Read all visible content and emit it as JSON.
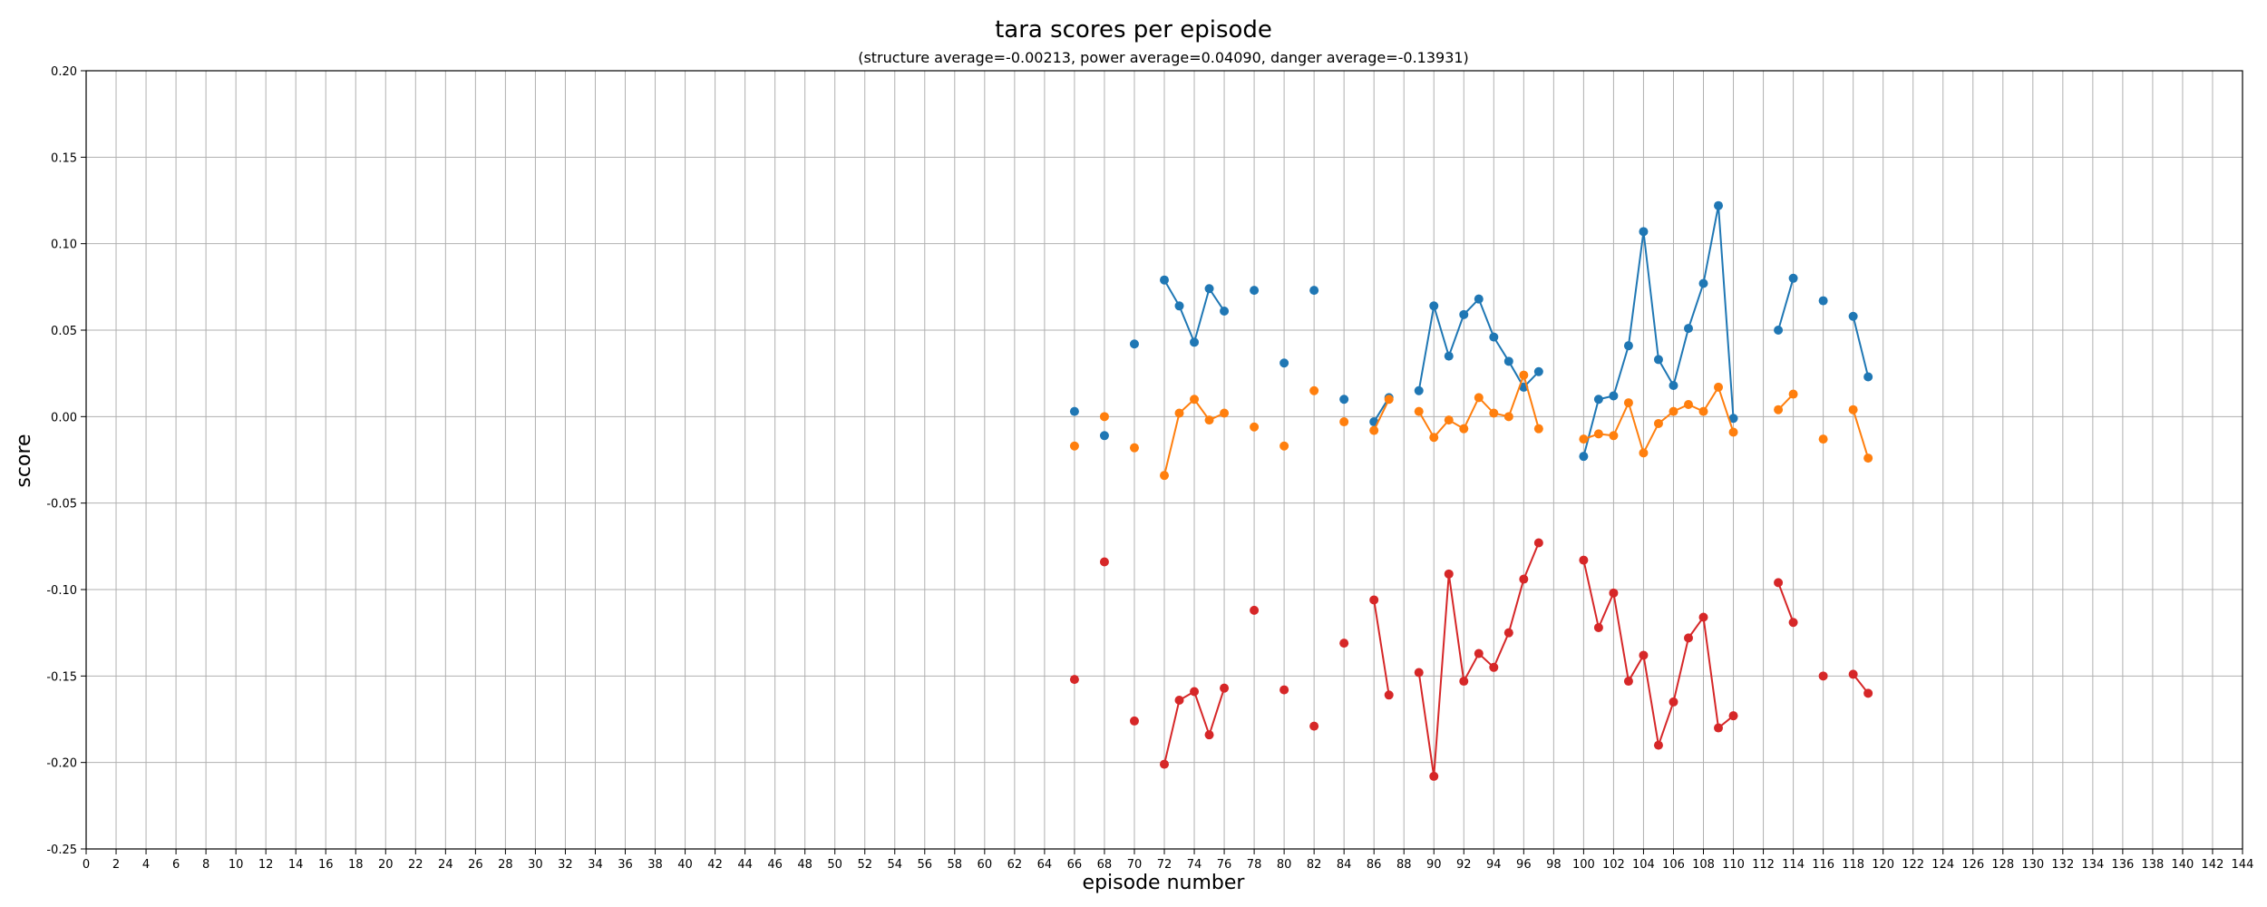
{
  "chart_data": {
    "type": "line",
    "title": "tara scores per episode",
    "subtitle": "(structure average=-0.00213, power average=0.04090, danger average=-0.13931)",
    "xlabel": "episode number",
    "ylabel": "score",
    "xlim": [
      0,
      144
    ],
    "ylim": [
      -0.25,
      0.2
    ],
    "xticks": [
      0,
      2,
      4,
      6,
      8,
      10,
      12,
      14,
      16,
      18,
      20,
      22,
      24,
      26,
      28,
      30,
      32,
      34,
      36,
      38,
      40,
      42,
      44,
      46,
      48,
      50,
      52,
      54,
      56,
      58,
      60,
      62,
      64,
      66,
      68,
      70,
      72,
      74,
      76,
      78,
      80,
      82,
      84,
      86,
      88,
      90,
      92,
      94,
      96,
      98,
      100,
      102,
      104,
      106,
      108,
      110,
      112,
      114,
      116,
      118,
      120,
      122,
      124,
      126,
      128,
      130,
      132,
      134,
      136,
      138,
      140,
      142,
      144
    ],
    "yticks": [
      -0.25,
      -0.2,
      -0.15,
      -0.1,
      -0.05,
      0.0,
      0.05,
      0.1,
      0.15,
      0.2
    ],
    "ytick_labels": [
      "-0.25",
      "-0.20",
      "-0.15",
      "-0.10",
      "-0.05",
      "0.00",
      "0.05",
      "0.10",
      "0.15",
      "0.20"
    ],
    "grid": true,
    "series": [
      {
        "color": "#1f77b4",
        "points": [
          [
            66,
            0.003
          ],
          [
            68,
            -0.011
          ],
          [
            70,
            0.042
          ],
          [
            72,
            0.079
          ],
          [
            73,
            0.064
          ],
          [
            74,
            0.043
          ],
          [
            75,
            0.074
          ],
          [
            76,
            0.061
          ],
          [
            78,
            0.073
          ],
          [
            80,
            0.031
          ],
          [
            82,
            0.073
          ],
          [
            84,
            0.01
          ],
          [
            86,
            -0.003
          ],
          [
            87,
            0.011
          ],
          [
            89,
            0.015
          ],
          [
            90,
            0.064
          ],
          [
            91,
            0.035
          ],
          [
            92,
            0.059
          ],
          [
            93,
            0.068
          ],
          [
            94,
            0.046
          ],
          [
            95,
            0.032
          ],
          [
            96,
            0.017
          ],
          [
            97,
            0.026
          ],
          [
            100,
            -0.023
          ],
          [
            101,
            0.01
          ],
          [
            102,
            0.012
          ],
          [
            103,
            0.041
          ],
          [
            104,
            0.107
          ],
          [
            105,
            0.033
          ],
          [
            106,
            0.018
          ],
          [
            107,
            0.051
          ],
          [
            108,
            0.077
          ],
          [
            109,
            0.122
          ],
          [
            110,
            -0.001
          ],
          [
            113,
            0.05
          ],
          [
            114,
            0.08
          ],
          [
            116,
            0.067
          ],
          [
            118,
            0.058
          ],
          [
            119,
            0.023
          ]
        ],
        "segments": [
          [
            72,
            76
          ],
          [
            86,
            87
          ],
          [
            89,
            97
          ],
          [
            100,
            110
          ],
          [
            113,
            114
          ],
          [
            118,
            119
          ]
        ]
      },
      {
        "color": "#ff7f0e",
        "points": [
          [
            66,
            -0.017
          ],
          [
            68,
            0.0
          ],
          [
            70,
            -0.018
          ],
          [
            72,
            -0.034
          ],
          [
            73,
            0.002
          ],
          [
            74,
            0.01
          ],
          [
            75,
            -0.002
          ],
          [
            76,
            0.002
          ],
          [
            78,
            -0.006
          ],
          [
            80,
            -0.017
          ],
          [
            82,
            0.015
          ],
          [
            84,
            -0.003
          ],
          [
            86,
            -0.008
          ],
          [
            87,
            0.01
          ],
          [
            89,
            0.003
          ],
          [
            90,
            -0.012
          ],
          [
            91,
            -0.002
          ],
          [
            92,
            -0.007
          ],
          [
            93,
            0.011
          ],
          [
            94,
            0.002
          ],
          [
            95,
            0.0
          ],
          [
            96,
            0.024
          ],
          [
            97,
            -0.007
          ],
          [
            100,
            -0.013
          ],
          [
            101,
            -0.01
          ],
          [
            102,
            -0.011
          ],
          [
            103,
            0.008
          ],
          [
            104,
            -0.021
          ],
          [
            105,
            -0.004
          ],
          [
            106,
            0.003
          ],
          [
            107,
            0.007
          ],
          [
            108,
            0.003
          ],
          [
            109,
            0.017
          ],
          [
            110,
            -0.009
          ],
          [
            113,
            0.004
          ],
          [
            114,
            0.013
          ],
          [
            116,
            -0.013
          ],
          [
            118,
            0.004
          ],
          [
            119,
            -0.024
          ]
        ],
        "segments": [
          [
            72,
            76
          ],
          [
            86,
            87
          ],
          [
            89,
            97
          ],
          [
            100,
            110
          ],
          [
            113,
            114
          ],
          [
            118,
            119
          ]
        ]
      },
      {
        "color": "#d62728",
        "points": [
          [
            66,
            -0.152
          ],
          [
            68,
            -0.084
          ],
          [
            70,
            -0.176
          ],
          [
            72,
            -0.201
          ],
          [
            73,
            -0.164
          ],
          [
            74,
            -0.159
          ],
          [
            75,
            -0.184
          ],
          [
            76,
            -0.157
          ],
          [
            78,
            -0.112
          ],
          [
            80,
            -0.158
          ],
          [
            82,
            -0.179
          ],
          [
            84,
            -0.131
          ],
          [
            86,
            -0.106
          ],
          [
            87,
            -0.161
          ],
          [
            89,
            -0.148
          ],
          [
            90,
            -0.208
          ],
          [
            91,
            -0.091
          ],
          [
            92,
            -0.153
          ],
          [
            93,
            -0.137
          ],
          [
            94,
            -0.145
          ],
          [
            95,
            -0.125
          ],
          [
            96,
            -0.094
          ],
          [
            97,
            -0.073
          ],
          [
            100,
            -0.083
          ],
          [
            101,
            -0.122
          ],
          [
            102,
            -0.102
          ],
          [
            103,
            -0.153
          ],
          [
            104,
            -0.138
          ],
          [
            105,
            -0.19
          ],
          [
            106,
            -0.165
          ],
          [
            107,
            -0.128
          ],
          [
            108,
            -0.116
          ],
          [
            109,
            -0.18
          ],
          [
            110,
            -0.173
          ],
          [
            113,
            -0.096
          ],
          [
            114,
            -0.119
          ],
          [
            116,
            -0.15
          ],
          [
            118,
            -0.149
          ],
          [
            119,
            -0.16
          ]
        ],
        "segments": [
          [
            72,
            76
          ],
          [
            86,
            87
          ],
          [
            89,
            97
          ],
          [
            100,
            110
          ],
          [
            113,
            114
          ],
          [
            118,
            119
          ]
        ]
      }
    ]
  }
}
